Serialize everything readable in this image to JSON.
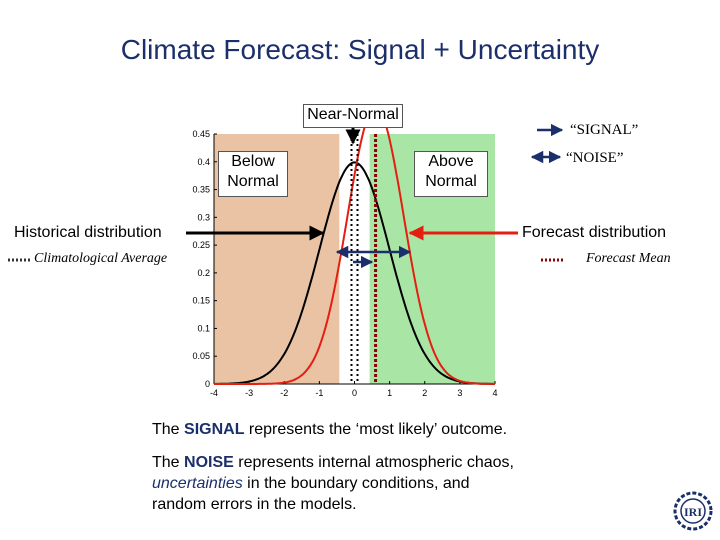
{
  "title": "Climate Forecast: Signal + Uncertainty",
  "labels": {
    "near_normal": "Near-Normal",
    "below_normal": [
      "Below",
      "Normal"
    ],
    "above_normal": [
      "Above",
      "Normal"
    ],
    "historical": "Historical distribution",
    "clim_avg": "Climatological Average",
    "forecast_dist": "Forecast distribution",
    "forecast_mean": "Forecast Mean",
    "signal_key": "“SIGNAL”",
    "noise_key": "“NOISE”"
  },
  "text": {
    "p1": [
      "The ",
      "SIGNAL",
      " represents the ‘most likely’ outcome."
    ],
    "p2": [
      "The ",
      "NOISE",
      " represents internal atmospheric chaos,",
      "uncertainties",
      " in the boundary conditions, and",
      "random errors in the models."
    ]
  },
  "logo_text": "IRI",
  "colors": {
    "title": "#1b2f6b",
    "below_fill": "#e9c3a4",
    "above_fill": "#a9e6a5",
    "historical_curve": "#000000",
    "forecast_curve": "#e41e10",
    "arrow_blue": "#1b2f6b",
    "forecast_arrow": "#e41e10"
  },
  "chart_data": {
    "type": "line",
    "xlim": [
      -4,
      4
    ],
    "ylim": [
      0,
      0.45
    ],
    "xticks": [
      -4,
      -3,
      -2,
      -1,
      0,
      1,
      2,
      3,
      4
    ],
    "yticks": [
      0,
      0.05,
      0.1,
      0.15,
      0.2,
      0.25,
      0.3,
      0.35,
      0.4,
      0.45
    ],
    "regions": [
      {
        "name": "Below Normal",
        "from": -4,
        "to": -0.43,
        "color": "#e9c3a4"
      },
      {
        "name": "Near-Normal",
        "from": -0.43,
        "to": 0.43,
        "color": "#ffffff"
      },
      {
        "name": "Above Normal",
        "from": 0.43,
        "to": 4,
        "color": "#a9e6a5"
      }
    ],
    "series": [
      {
        "name": "Historical distribution",
        "type": "normal",
        "mean": 0,
        "sd": 1,
        "color": "#000000"
      },
      {
        "name": "Forecast distribution",
        "type": "normal",
        "mean": 0.6,
        "sd": 0.8,
        "color": "#e41e10"
      }
    ],
    "vlines": [
      {
        "name": "Climatological Average",
        "x": 0,
        "color": "#000000"
      },
      {
        "name": "Forecast Mean",
        "x": 0.6,
        "color": "#8b0000"
      }
    ]
  }
}
